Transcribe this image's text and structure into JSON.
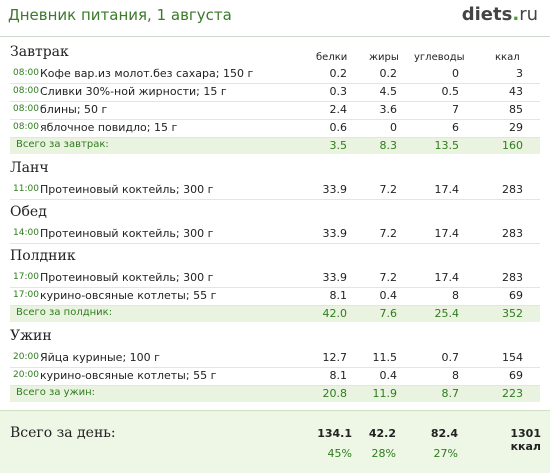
{
  "header": {
    "title": "Дневник питания, 1 августа",
    "logo_main": "diets",
    "logo_dot": ".",
    "logo_ru": "ru"
  },
  "columns": {
    "protein": "белки",
    "fat": "жиры",
    "carbs": "углеводы",
    "kcal": "ккал"
  },
  "meals": [
    {
      "title": "Завтрак",
      "items": [
        {
          "time": "08:00",
          "name": "Кофе вар.из молот.без сахара; 150 г",
          "p": "0.2",
          "f": "0.2",
          "c": "0",
          "k": "3"
        },
        {
          "time": "08:00",
          "name": "Сливки 30%-ной жирности; 15 г",
          "p": "0.3",
          "f": "4.5",
          "c": "0.5",
          "k": "43"
        },
        {
          "time": "08:00",
          "name": "блины; 50 г",
          "p": "2.4",
          "f": "3.6",
          "c": "7",
          "k": "85"
        },
        {
          "time": "08:00",
          "name": "яблочное повидло; 15 г",
          "p": "0.6",
          "f": "0",
          "c": "6",
          "k": "29"
        }
      ],
      "total": {
        "label": "Всего за завтрак:",
        "p": "3.5",
        "f": "8.3",
        "c": "13.5",
        "k": "160"
      }
    },
    {
      "title": "Ланч",
      "items": [
        {
          "time": "11:00",
          "name": "Протеиновый коктейль; 300 г",
          "p": "33.9",
          "f": "7.2",
          "c": "17.4",
          "k": "283"
        }
      ]
    },
    {
      "title": "Обед",
      "items": [
        {
          "time": "14:00",
          "name": "Протеиновый коктейль; 300 г",
          "p": "33.9",
          "f": "7.2",
          "c": "17.4",
          "k": "283"
        }
      ]
    },
    {
      "title": "Полдник",
      "items": [
        {
          "time": "17:00",
          "name": "Протеиновый коктейль; 300 г",
          "p": "33.9",
          "f": "7.2",
          "c": "17.4",
          "k": "283"
        },
        {
          "time": "17:00",
          "name": "курино-овсяные котлеты; 55 г",
          "p": "8.1",
          "f": "0.4",
          "c": "8",
          "k": "69"
        }
      ],
      "total": {
        "label": "Всего за полдник:",
        "p": "42.0",
        "f": "7.6",
        "c": "25.4",
        "k": "352"
      }
    },
    {
      "title": "Ужин",
      "items": [
        {
          "time": "20:00",
          "name": "Яйца куриные; 100 г",
          "p": "12.7",
          "f": "11.5",
          "c": "0.7",
          "k": "154"
        },
        {
          "time": "20:00",
          "name": "курино-овсяные котлеты; 55 г",
          "p": "8.1",
          "f": "0.4",
          "c": "8",
          "k": "69"
        }
      ],
      "total": {
        "label": "Всего за ужин:",
        "p": "20.8",
        "f": "11.9",
        "c": "8.7",
        "k": "223"
      }
    }
  ],
  "day_total": {
    "label": "Всего за день:",
    "p": "134.1",
    "f": "42.2",
    "c": "82.4",
    "k": "1301 ккал",
    "p_pct": "45%",
    "f_pct": "28%",
    "c_pct": "27%"
  }
}
